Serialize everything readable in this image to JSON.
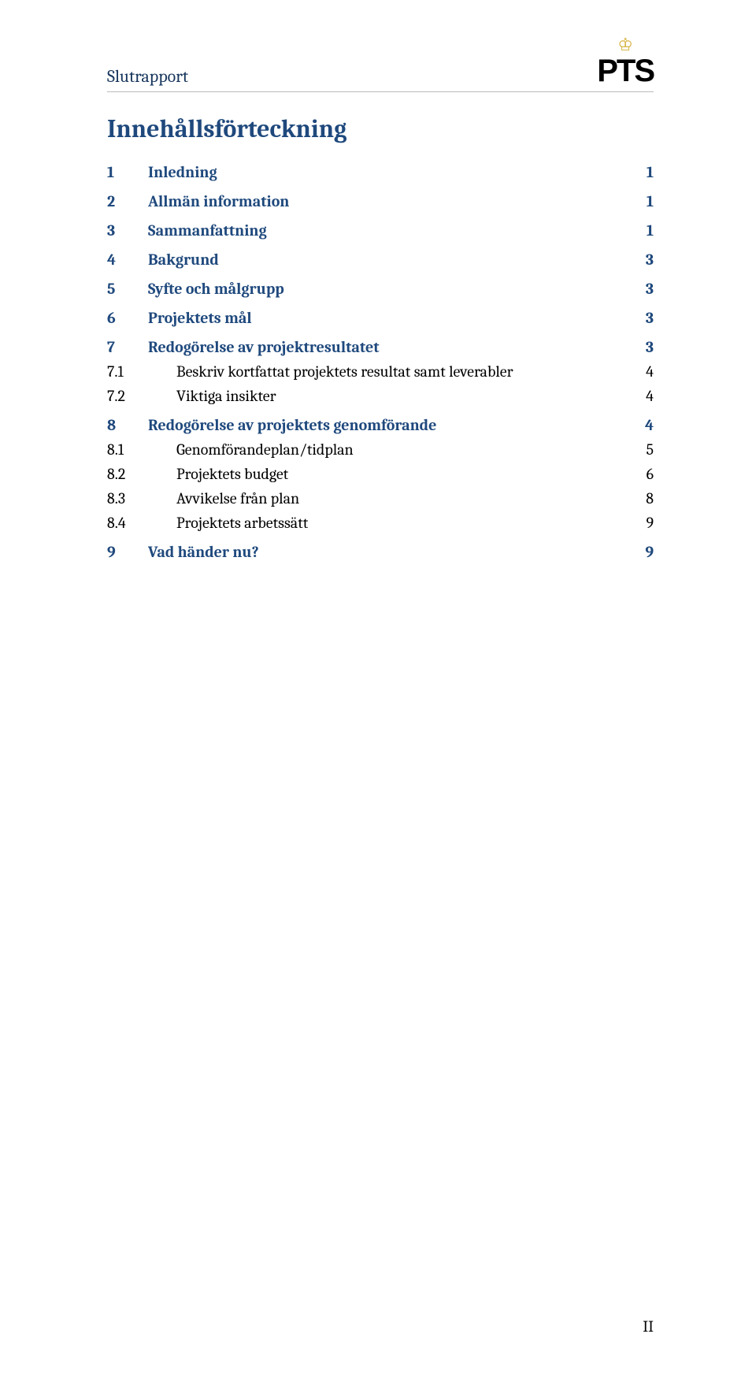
{
  "header": {
    "doc_title": "Slutrapport",
    "logo_text": "PTS",
    "crown_glyph": "♔"
  },
  "toc": {
    "title": "Innehållsförteckning",
    "entries": [
      {
        "level": "section",
        "num": "1",
        "label": "Inledning",
        "page": "1"
      },
      {
        "level": "section",
        "num": "2",
        "label": "Allmän information",
        "page": "1"
      },
      {
        "level": "section",
        "num": "3",
        "label": "Sammanfattning",
        "page": "1"
      },
      {
        "level": "section",
        "num": "4",
        "label": "Bakgrund",
        "page": "3"
      },
      {
        "level": "section",
        "num": "5",
        "label": "Syfte och målgrupp",
        "page": "3"
      },
      {
        "level": "section",
        "num": "6",
        "label": "Projektets mål",
        "page": "3"
      },
      {
        "level": "section",
        "num": "7",
        "label": "Redogörelse av projektresultatet",
        "page": "3"
      },
      {
        "level": "sub",
        "num": "7.1",
        "label": "Beskriv kortfattat projektets resultat samt leverabler",
        "page": "4"
      },
      {
        "level": "sub",
        "num": "7.2",
        "label": "Viktiga insikter",
        "page": "4"
      },
      {
        "level": "section",
        "num": "8",
        "label": "Redogörelse av projektets genomförande",
        "page": "4"
      },
      {
        "level": "sub",
        "num": "8.1",
        "label": "Genomförandeplan/tidplan",
        "page": "5"
      },
      {
        "level": "sub",
        "num": "8.2",
        "label": "Projektets budget",
        "page": "6"
      },
      {
        "level": "sub",
        "num": "8.3",
        "label": "Avvikelse från plan",
        "page": "8"
      },
      {
        "level": "sub",
        "num": "8.4",
        "label": "Projektets arbetssätt",
        "page": "9"
      },
      {
        "level": "section",
        "num": "9",
        "label": "Vad händer nu?",
        "page": "9"
      }
    ]
  },
  "footer": {
    "page_roman": "II"
  },
  "colors": {
    "heading": "#1f497d",
    "doc_title": "#17365d",
    "body_text": "#000000",
    "rule": "#bbbbbb",
    "crown": "#d4af37",
    "background": "#ffffff"
  },
  "typography": {
    "doc_title_pt": 22,
    "toc_title_pt": 32,
    "toc_entry_pt": 20,
    "footer_pt": 20,
    "font_family": "Cambria"
  }
}
